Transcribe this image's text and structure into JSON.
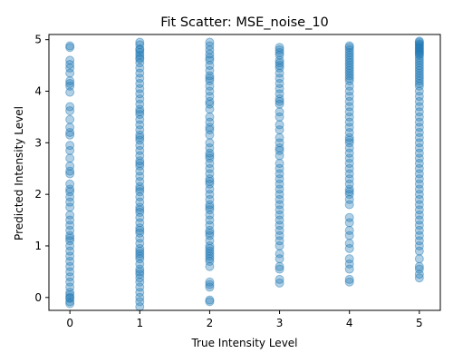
{
  "chart_data": {
    "type": "scatter",
    "title": "Fit Scatter: MSE_noise_10",
    "xlabel": "True Intensity Level",
    "ylabel": "Predicted Intensity Level",
    "xlim": [
      -0.3,
      5.3
    ],
    "ylim": [
      -0.25,
      5.1
    ],
    "x_ticks": [
      0,
      1,
      2,
      3,
      4,
      5
    ],
    "y_ticks": [
      0,
      1,
      2,
      3,
      4,
      5
    ],
    "grid": false,
    "legend": "none",
    "marker_color": "#1f77b4",
    "marker_alpha": 0.35,
    "series": [
      {
        "x": [
          0,
          0,
          0,
          0,
          0,
          0,
          0,
          0,
          0,
          0,
          0,
          0,
          0,
          0,
          0,
          0,
          0,
          0,
          0,
          0,
          0,
          0,
          0,
          0,
          0,
          0,
          0,
          0,
          0,
          0,
          0,
          0,
          0,
          0,
          0,
          0,
          0,
          0,
          0,
          0,
          0,
          0,
          0,
          0,
          0,
          0,
          0,
          0,
          0,
          0
        ],
        "y": [
          4.88,
          4.85,
          4.6,
          4.52,
          4.45,
          4.35,
          4.2,
          4.15,
          4.1,
          3.98,
          3.7,
          3.62,
          3.45,
          3.3,
          3.2,
          3.15,
          2.95,
          2.85,
          2.7,
          2.55,
          2.45,
          2.4,
          2.2,
          2.1,
          2.05,
          1.95,
          1.85,
          1.75,
          1.6,
          1.5,
          1.4,
          1.3,
          1.2,
          1.15,
          1.1,
          1.0,
          0.9,
          0.8,
          0.7,
          0.6,
          0.5,
          0.4,
          0.3,
          0.2,
          0.1,
          0.05,
          0.0,
          -0.02,
          -0.08,
          -0.12
        ]
      },
      {
        "x": [
          1,
          1,
          1,
          1,
          1,
          1,
          1,
          1,
          1,
          1,
          1,
          1,
          1,
          1,
          1,
          1,
          1,
          1,
          1,
          1,
          1,
          1,
          1,
          1,
          1,
          1,
          1,
          1,
          1,
          1,
          1,
          1,
          1,
          1,
          1,
          1,
          1,
          1,
          1,
          1,
          1,
          1,
          1,
          1,
          1,
          1,
          1,
          1,
          1,
          1,
          1,
          1,
          1,
          1,
          1,
          1,
          1,
          1,
          1,
          1,
          1,
          1,
          1,
          1,
          1,
          1
        ],
        "y": [
          4.95,
          4.9,
          4.82,
          4.75,
          4.7,
          4.62,
          4.55,
          4.45,
          4.35,
          4.25,
          4.15,
          4.05,
          3.95,
          3.85,
          3.75,
          3.65,
          3.55,
          3.45,
          3.35,
          3.25,
          3.15,
          3.05,
          2.95,
          2.85,
          2.75,
          2.65,
          2.55,
          2.45,
          2.35,
          2.25,
          2.15,
          2.05,
          1.95,
          1.85,
          1.75,
          1.65,
          1.55,
          1.45,
          1.35,
          1.25,
          1.15,
          1.05,
          0.95,
          0.85,
          0.8,
          0.75,
          0.65,
          0.55,
          0.45,
          0.38,
          0.3,
          0.2,
          0.1,
          0.0,
          -0.08,
          -0.18,
          4.8,
          4.65,
          3.6,
          3.1,
          2.6,
          2.1,
          1.7,
          1.3,
          0.9,
          0.5
        ]
      },
      {
        "x": [
          2,
          2,
          2,
          2,
          2,
          2,
          2,
          2,
          2,
          2,
          2,
          2,
          2,
          2,
          2,
          2,
          2,
          2,
          2,
          2,
          2,
          2,
          2,
          2,
          2,
          2,
          2,
          2,
          2,
          2,
          2,
          2,
          2,
          2,
          2,
          2,
          2,
          2,
          2,
          2,
          2,
          2,
          2,
          2,
          2,
          2,
          2,
          2,
          2,
          2,
          2,
          2,
          2,
          2,
          2,
          2,
          2,
          2,
          2
        ],
        "y": [
          4.95,
          4.88,
          4.8,
          4.72,
          4.6,
          4.5,
          4.4,
          4.3,
          4.2,
          4.1,
          4.0,
          3.9,
          3.8,
          3.65,
          3.5,
          3.4,
          3.3,
          3.15,
          3.0,
          2.9,
          2.8,
          2.7,
          2.6,
          2.5,
          2.4,
          2.3,
          2.2,
          2.1,
          2.0,
          1.9,
          1.8,
          1.7,
          1.6,
          1.5,
          1.4,
          1.3,
          1.2,
          1.1,
          1.0,
          0.9,
          0.8,
          0.75,
          0.7,
          0.6,
          0.3,
          0.25,
          0.2,
          -0.05,
          -0.08,
          4.65,
          4.25,
          3.75,
          3.25,
          2.75,
          2.25,
          1.75,
          1.25,
          0.95,
          0.85
        ]
      },
      {
        "x": [
          3,
          3,
          3,
          3,
          3,
          3,
          3,
          3,
          3,
          3,
          3,
          3,
          3,
          3,
          3,
          3,
          3,
          3,
          3,
          3,
          3,
          3,
          3,
          3,
          3,
          3,
          3,
          3,
          3,
          3,
          3,
          3,
          3,
          3,
          3,
          3,
          3,
          3,
          3,
          3,
          3,
          3,
          3,
          3,
          3,
          3,
          3,
          3
        ],
        "y": [
          4.85,
          4.8,
          4.75,
          4.7,
          4.6,
          4.55,
          4.45,
          4.35,
          4.25,
          4.15,
          4.05,
          3.95,
          3.85,
          3.75,
          3.6,
          3.5,
          3.35,
          3.25,
          3.1,
          3.0,
          2.9,
          2.75,
          2.6,
          2.5,
          2.4,
          2.3,
          2.2,
          2.1,
          2.0,
          1.9,
          1.8,
          1.7,
          1.6,
          1.5,
          1.4,
          1.3,
          1.2,
          1.1,
          1.0,
          0.85,
          0.75,
          0.6,
          0.55,
          0.35,
          0.28,
          4.5,
          3.8,
          2.85
        ]
      },
      {
        "x": [
          4,
          4,
          4,
          4,
          4,
          4,
          4,
          4,
          4,
          4,
          4,
          4,
          4,
          4,
          4,
          4,
          4,
          4,
          4,
          4,
          4,
          4,
          4,
          4,
          4,
          4,
          4,
          4,
          4,
          4,
          4,
          4,
          4,
          4,
          4,
          4,
          4,
          4,
          4,
          4,
          4,
          4,
          4,
          4,
          4,
          4,
          4,
          4,
          4,
          4,
          4,
          4
        ],
        "y": [
          4.88,
          4.85,
          4.8,
          4.75,
          4.7,
          4.65,
          4.6,
          4.55,
          4.5,
          4.45,
          4.4,
          4.35,
          4.3,
          4.25,
          4.2,
          4.1,
          4.0,
          3.9,
          3.8,
          3.7,
          3.6,
          3.5,
          3.4,
          3.3,
          3.2,
          3.1,
          3.0,
          2.9,
          2.8,
          2.7,
          2.6,
          2.5,
          2.4,
          2.3,
          2.2,
          2.1,
          2.0,
          1.9,
          1.8,
          1.55,
          1.45,
          1.3,
          1.2,
          1.05,
          0.95,
          0.75,
          0.65,
          0.55,
          0.35,
          0.3,
          3.05,
          2.05
        ]
      },
      {
        "x": [
          5,
          5,
          5,
          5,
          5,
          5,
          5,
          5,
          5,
          5,
          5,
          5,
          5,
          5,
          5,
          5,
          5,
          5,
          5,
          5,
          5,
          5,
          5,
          5,
          5,
          5,
          5,
          5,
          5,
          5,
          5,
          5,
          5,
          5,
          5,
          5,
          5,
          5,
          5,
          5,
          5,
          5,
          5,
          5,
          5,
          5,
          5,
          5,
          5,
          5,
          5,
          5,
          5,
          5,
          5,
          5,
          5,
          5,
          5,
          5,
          5
        ],
        "y": [
          4.97,
          4.95,
          4.92,
          4.9,
          4.87,
          4.85,
          4.82,
          4.8,
          4.77,
          4.75,
          4.72,
          4.7,
          4.65,
          4.6,
          4.55,
          4.5,
          4.45,
          4.4,
          4.35,
          4.3,
          4.25,
          4.2,
          4.1,
          4.0,
          3.9,
          3.8,
          3.7,
          3.6,
          3.5,
          3.4,
          3.3,
          3.2,
          3.1,
          3.0,
          2.9,
          2.8,
          2.7,
          2.6,
          2.5,
          2.4,
          2.3,
          2.2,
          2.1,
          2.0,
          1.9,
          1.8,
          1.7,
          1.6,
          1.5,
          1.4,
          1.3,
          1.2,
          1.1,
          1.0,
          0.9,
          0.75,
          0.6,
          0.55,
          0.45,
          0.38,
          4.15
        ]
      }
    ]
  }
}
